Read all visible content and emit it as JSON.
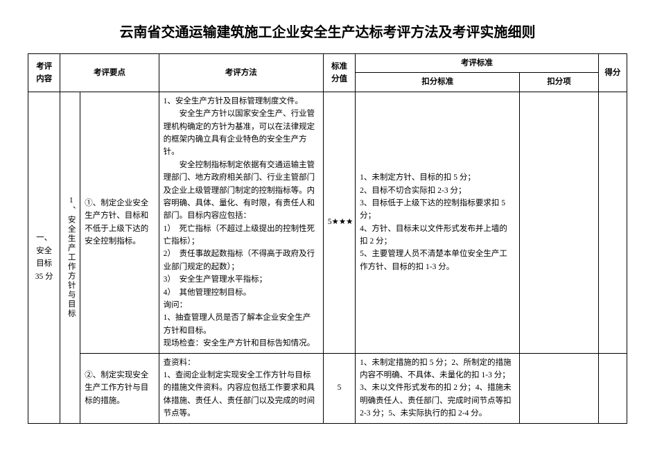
{
  "title": "云南省交通运输建筑施工企业安全生产达标考评方法及考评实施细则",
  "header": {
    "col1": "考评内容",
    "col2": "考评要点",
    "col3": "考评方法",
    "col4": "标准分值",
    "col5": "考评标准",
    "col5a": "扣分标准",
    "col5b": "扣分项",
    "col6": "得分"
  },
  "section": {
    "main_content": "一、安全目标 35 分",
    "sub_label": "1、安全生产工作方针与目标",
    "row1": {
      "point": "①、制定企业安全生产方针、目标和不低于上级下达的安全控制指标。",
      "method": "1、安全生产方针及目标管理制度文件。\n　　安全生产方针以国家安全生产、行业管理机构确定的方针为基准，可以在法律规定的框架内确立具有企业特色的安全生产方针。\n　　安全控制指标制定依据有交通运输主管理部门、地方政府相关部门、行业主管部门及企业上级管理部门制定的控制指标等。内容明确、具体、量化、有时限，有责任人和部门。目标内容应包括：\n1）　死亡指标（不超过上级提出的控制性死亡指标）；\n2）　责任事故起数指标（不得高于政府及行业部门规定的起数）；\n3）　安全生产管理水平指标；\n4）　其他管理控制目标。\n询问：\n1、抽查管理人员是否了解本企业安全生产方针和目标。\n现场检查：安全生产方针和目标告知情况。",
      "score": "5★★★",
      "deduct": "1、未制定方针、目标的扣 5 分；\n2、目标不切合实际扣 2-3 分；\n3、目标低于上级下达的控制指标要求扣 5 分；\n4、方针、目标未以文件形式发布并上墙的扣 2 分；\n5、主要管理人员不清楚本单位安全生产工作方针、目标的扣 1-3 分。"
    },
    "row2": {
      "point": "②、制定实现安全生产工作方针与目标的措施。",
      "method": "查资料：\n1、查阅企业制定实现安全工作方针与目标的措施文件资料。内容应包括工作要求和具体措施、责任人、责任部门以及完成的时间节点等。",
      "score": "5",
      "deduct": "1、未制定措施的扣 5 分；2、所制定的措施内容不明确、不具体、未量化的扣 1-3 分；3、未以文件形式发布的扣 2 分；4、措施未明确责任人、责任部门、完成时间节点等扣 2-3 分；5、未实际执行的扣 2-4 分。"
    }
  }
}
